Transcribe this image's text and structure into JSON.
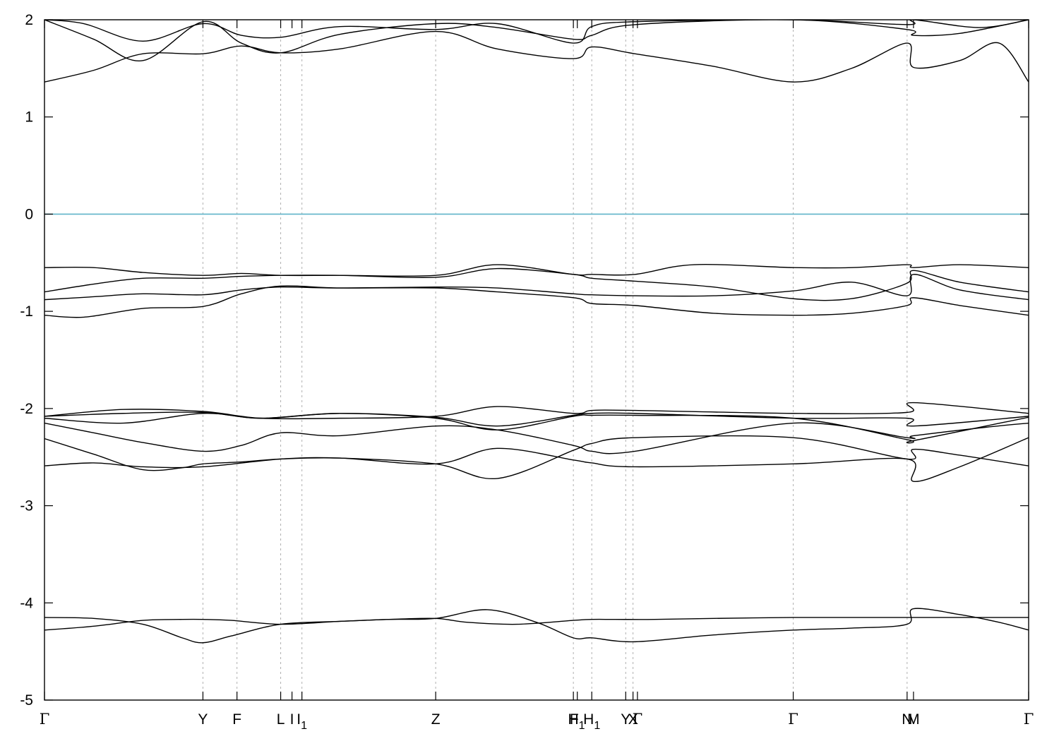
{
  "chart_data": {
    "type": "line",
    "title": "",
    "xlabel": "",
    "ylabel": "",
    "ylim": [
      -5,
      2
    ],
    "xlim": [
      0,
      1
    ],
    "grid": "vertical dashed lines at high-symmetry points",
    "legend": "none",
    "colors": {
      "bands": "#000000",
      "fermi": "#5fb4c9",
      "grid": "#b0b0b0",
      "axes": "#000000"
    },
    "y_ticks": [
      {
        "value": 2,
        "label": "2"
      },
      {
        "value": 1,
        "label": "1"
      },
      {
        "value": 0,
        "label": "0"
      },
      {
        "value": -1,
        "label": "-1"
      },
      {
        "value": -2,
        "label": "-2"
      },
      {
        "value": -3,
        "label": "-3"
      },
      {
        "value": -4,
        "label": "-4"
      },
      {
        "value": -5,
        "label": "-5"
      }
    ],
    "x_ticks": [
      {
        "pos": 0.0,
        "label": "Γ",
        "sub": ""
      },
      {
        "pos": 0.161,
        "label": "Y",
        "sub": ""
      },
      {
        "pos": 0.1956,
        "label": "F",
        "sub": ""
      },
      {
        "pos": 0.24,
        "label": "L",
        "sub": ""
      },
      {
        "pos": 0.2515,
        "label": "I",
        "sub": ""
      },
      {
        "pos": 0.2616,
        "label": "I",
        "sub": "1"
      },
      {
        "pos": 0.3975,
        "label": "Z",
        "sub": ""
      },
      {
        "pos": 0.5374,
        "label": "H",
        "sub": ""
      },
      {
        "pos": 0.5414,
        "label": "F",
        "sub": "1"
      },
      {
        "pos": 0.5561,
        "label": "H",
        "sub": "1"
      },
      {
        "pos": 0.5906,
        "label": "Y",
        "sub": ""
      },
      {
        "pos": 0.598,
        "label": "X",
        "sub": ""
      },
      {
        "pos": 0.6025,
        "label": "Γ",
        "sub": ""
      },
      {
        "pos": 0.7608,
        "label": "Γ",
        "sub": ""
      },
      {
        "pos": 0.8765,
        "label": "N",
        "sub": ""
      },
      {
        "pos": 0.883,
        "label": "M",
        "sub": ""
      },
      {
        "pos": 1.0,
        "label": "Γ",
        "sub": ""
      }
    ],
    "grid_lines": [
      0.161,
      0.1956,
      0.24,
      0.2616,
      0.3975,
      0.5374,
      0.5561,
      0.5906,
      0.598,
      0.7608,
      0.8765
    ],
    "fermi_level": 0,
    "series": [
      {
        "x": [
          0,
          0.05,
          0.1,
          0.14,
          0.161,
          0.19,
          0.24,
          0.3,
          0.35,
          0.3975,
          0.43,
          0.48,
          0.5374,
          0.5561,
          0.58,
          0.62,
          0.68,
          0.7608,
          0.82,
          0.8765,
          0.883,
          0.93,
          0.97,
          1.0
        ],
        "y": [
          -4.28,
          -4.24,
          -4.18,
          -4.17,
          -4.17,
          -4.18,
          -4.22,
          -4.19,
          -4.17,
          -4.16,
          -4.2,
          -4.22,
          -4.18,
          -4.17,
          -4.17,
          -4.17,
          -4.16,
          -4.15,
          -4.15,
          -4.15,
          -4.15,
          -4.15,
          -4.15,
          -4.15
        ]
      },
      {
        "x": [
          0,
          0.05,
          0.1,
          0.14,
          0.161,
          0.19,
          0.24,
          0.3,
          0.35,
          0.3975,
          0.45,
          0.5,
          0.5374,
          0.5561,
          0.6,
          0.68,
          0.7608,
          0.82,
          0.8765,
          0.883,
          0.93,
          0.97,
          1.0
        ],
        "y": [
          -4.15,
          -4.16,
          -4.22,
          -4.36,
          -4.41,
          -4.34,
          -4.22,
          -4.19,
          -4.17,
          -4.16,
          -4.07,
          -4.2,
          -4.36,
          -4.36,
          -4.4,
          -4.33,
          -4.28,
          -4.26,
          -4.22,
          -4.06,
          -4.12,
          -4.2,
          -4.28
        ]
      },
      {
        "x": [
          0,
          0.05,
          0.1,
          0.161,
          0.24,
          0.3,
          0.3975,
          0.46,
          0.5374,
          0.5561,
          0.6,
          0.7608,
          0.8765,
          0.883,
          0.93,
          1.0
        ],
        "y": [
          -2.59,
          -2.56,
          -2.6,
          -2.6,
          -2.52,
          -2.51,
          -2.57,
          -2.72,
          -2.43,
          -2.36,
          -2.3,
          -2.3,
          -2.52,
          -2.42,
          -2.48,
          -2.59
        ]
      },
      {
        "x": [
          0,
          0.05,
          0.1,
          0.14,
          0.161,
          0.2,
          0.24,
          0.3,
          0.3975,
          0.46,
          0.5374,
          0.5561,
          0.6,
          0.7608,
          0.8765,
          0.883,
          0.93,
          1.0
        ],
        "y": [
          -2.31,
          -2.47,
          -2.63,
          -2.61,
          -2.57,
          -2.55,
          -2.52,
          -2.51,
          -2.57,
          -2.41,
          -2.53,
          -2.56,
          -2.6,
          -2.57,
          -2.52,
          -2.75,
          -2.6,
          -2.3
        ]
      },
      {
        "x": [
          0,
          0.05,
          0.1,
          0.161,
          0.2,
          0.24,
          0.3,
          0.3975,
          0.46,
          0.5374,
          0.5561,
          0.6,
          0.7608,
          0.8765,
          0.883,
          0.95,
          1.0
        ],
        "y": [
          -2.15,
          -2.25,
          -2.35,
          -2.44,
          -2.38,
          -2.25,
          -2.28,
          -2.18,
          -2.22,
          -2.38,
          -2.44,
          -2.44,
          -2.15,
          -2.3,
          -2.28,
          -2.2,
          -2.15
        ]
      },
      {
        "x": [
          0,
          0.08,
          0.161,
          0.22,
          0.3,
          0.3975,
          0.46,
          0.5374,
          0.5561,
          0.6,
          0.7608,
          0.8765,
          0.883,
          1.0
        ],
        "y": [
          -2.1,
          -2.15,
          -2.05,
          -2.1,
          -2.05,
          -2.1,
          -2.22,
          -2.08,
          -2.07,
          -2.07,
          -2.1,
          -2.32,
          -2.33,
          -2.09
        ]
      },
      {
        "x": [
          0,
          0.08,
          0.161,
          0.22,
          0.3,
          0.3975,
          0.46,
          0.5374,
          0.5561,
          0.6,
          0.7608,
          0.8765,
          0.883,
          1.0
        ],
        "y": [
          -2.08,
          -2.05,
          -2.04,
          -2.1,
          -2.05,
          -2.09,
          -2.18,
          -2.07,
          -2.05,
          -2.05,
          -2.1,
          -2.1,
          -2.18,
          -2.08
        ]
      },
      {
        "x": [
          0,
          0.08,
          0.161,
          0.22,
          0.3,
          0.3975,
          0.46,
          0.5374,
          0.5561,
          0.6,
          0.7608,
          0.8765,
          0.883,
          1.0
        ],
        "y": [
          -2.08,
          -2.01,
          -2.03,
          -2.1,
          -2.1,
          -2.08,
          -1.98,
          -2.05,
          -2.02,
          -2.02,
          -2.05,
          -2.04,
          -1.94,
          -2.05
        ]
      },
      {
        "x": [
          0,
          0.04,
          0.1,
          0.161,
          0.2,
          0.24,
          0.3,
          0.3975,
          0.46,
          0.5374,
          0.5561,
          0.6,
          0.68,
          0.7608,
          0.82,
          0.8765,
          0.883,
          0.93,
          1.0
        ],
        "y": [
          -1.04,
          -1.06,
          -0.97,
          -0.95,
          -0.82,
          -0.74,
          -0.76,
          -0.76,
          -0.8,
          -0.86,
          -0.92,
          -0.94,
          -1.02,
          -1.04,
          -1.02,
          -0.94,
          -0.86,
          -0.94,
          -1.04
        ]
      },
      {
        "x": [
          0,
          0.05,
          0.1,
          0.161,
          0.2,
          0.24,
          0.3,
          0.3975,
          0.46,
          0.5374,
          0.5561,
          0.6,
          0.68,
          0.7608,
          0.82,
          0.8765,
          0.883,
          0.93,
          1.0
        ],
        "y": [
          -0.88,
          -0.85,
          -0.82,
          -0.83,
          -0.78,
          -0.75,
          -0.76,
          -0.75,
          -0.76,
          -0.82,
          -0.83,
          -0.84,
          -0.84,
          -0.79,
          -0.7,
          -0.84,
          -0.62,
          -0.78,
          -0.88
        ]
      },
      {
        "x": [
          0,
          0.05,
          0.1,
          0.161,
          0.2,
          0.24,
          0.3,
          0.3975,
          0.46,
          0.5374,
          0.5561,
          0.6,
          0.68,
          0.7608,
          0.82,
          0.8765,
          0.883,
          0.93,
          1.0
        ],
        "y": [
          -0.8,
          -0.72,
          -0.66,
          -0.66,
          -0.64,
          -0.63,
          -0.63,
          -0.65,
          -0.56,
          -0.62,
          -0.66,
          -0.69,
          -0.75,
          -0.87,
          -0.87,
          -0.71,
          -0.58,
          -0.7,
          -0.8
        ]
      },
      {
        "x": [
          0,
          0.05,
          0.1,
          0.161,
          0.2,
          0.24,
          0.3,
          0.3975,
          0.46,
          0.5374,
          0.5561,
          0.6,
          0.66,
          0.7608,
          0.82,
          0.8765,
          0.883,
          0.93,
          1.0
        ],
        "y": [
          -0.55,
          -0.55,
          -0.6,
          -0.63,
          -0.61,
          -0.63,
          -0.63,
          -0.63,
          -0.52,
          -0.62,
          -0.62,
          -0.62,
          -0.52,
          -0.55,
          -0.55,
          -0.52,
          -0.55,
          -0.52,
          -0.55
        ]
      },
      {
        "x": [
          0,
          0.05,
          0.1,
          0.161,
          0.2,
          0.24,
          0.3,
          0.3975,
          0.46,
          0.5374,
          0.5561,
          0.6,
          0.68,
          0.7608,
          0.82,
          0.8765,
          0.883,
          0.93,
          0.97,
          1.0
        ],
        "y": [
          1.36,
          1.48,
          1.65,
          1.65,
          1.73,
          1.66,
          1.7,
          1.88,
          1.7,
          1.6,
          1.72,
          1.65,
          1.52,
          1.36,
          1.5,
          1.76,
          1.51,
          1.58,
          1.76,
          1.36
        ]
      },
      {
        "x": [
          0,
          0.05,
          0.1,
          0.161,
          0.2,
          0.24,
          0.3,
          0.3975,
          0.46,
          0.5374,
          0.5561,
          0.6,
          0.7608,
          0.8765,
          0.883,
          0.93,
          1.0
        ],
        "y": [
          2.0,
          1.8,
          1.58,
          1.98,
          1.76,
          1.66,
          1.85,
          1.96,
          1.92,
          1.8,
          1.84,
          1.95,
          2.0,
          1.9,
          1.84,
          1.86,
          2.0
        ]
      },
      {
        "x": [
          0,
          0.04,
          0.1,
          0.161,
          0.2,
          0.24,
          0.3,
          0.3975,
          0.46,
          0.5374,
          0.5561,
          0.6,
          0.7608,
          0.8765,
          0.883,
          0.95,
          1.0
        ],
        "y": [
          2.0,
          1.96,
          1.78,
          1.96,
          1.84,
          1.82,
          1.93,
          1.9,
          1.96,
          1.76,
          1.93,
          1.98,
          2.0,
          1.95,
          2.0,
          1.92,
          2.0
        ]
      }
    ]
  }
}
